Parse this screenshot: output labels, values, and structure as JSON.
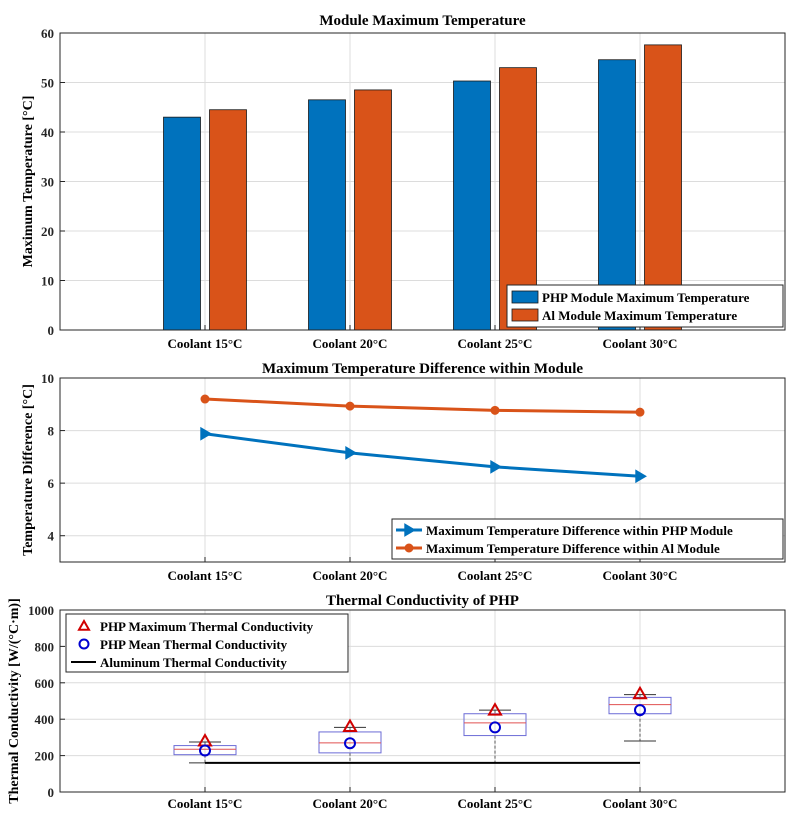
{
  "chart_data": [
    {
      "type": "bar",
      "title": "Module Maximum Temperature",
      "xlabel": "",
      "ylabel": "Maximum Temperature [°C]",
      "ylim": [
        0,
        60
      ],
      "yticks": [
        0,
        10,
        20,
        30,
        40,
        50,
        60
      ],
      "categories": [
        "Coolant 15°C",
        "Coolant 20°C",
        "Coolant 25°C",
        "Coolant 30°C"
      ],
      "series": [
        {
          "name": "PHP Module Maximum Temperature",
          "color": "#0072BD",
          "values": [
            43.0,
            46.5,
            50.3,
            54.6
          ]
        },
        {
          "name": "Al Module Maximum Temperature",
          "color": "#D95319",
          "values": [
            44.5,
            48.5,
            53.0,
            57.6
          ]
        }
      ],
      "legend": "bottom-right",
      "grid": true
    },
    {
      "type": "line",
      "title": "Maximum Temperature Difference within Module",
      "xlabel": "",
      "ylabel": "Temperature Difference [°C]",
      "ylim": [
        3,
        10
      ],
      "yticks": [
        4,
        6,
        8,
        10
      ],
      "categories": [
        "Coolant 15°C",
        "Coolant 20°C",
        "Coolant 25°C",
        "Coolant 30°C"
      ],
      "series": [
        {
          "name": "Maximum Temperature Difference within PHP Module",
          "color": "#0072BD",
          "marker": "triangle-right",
          "values": [
            7.88,
            7.15,
            6.62,
            6.26
          ]
        },
        {
          "name": "Maximum Temperature Difference within Al Module",
          "color": "#D95319",
          "marker": "circle",
          "values": [
            9.2,
            8.93,
            8.77,
            8.7
          ]
        }
      ],
      "legend": "bottom-right",
      "grid": true
    },
    {
      "type": "box",
      "title": "Thermal Conductivity of PHP",
      "xlabel": "",
      "ylabel": "Thermal Conductivity [W/(°C·m)]",
      "ylim": [
        0,
        1000
      ],
      "yticks": [
        0,
        200,
        400,
        600,
        800,
        1000
      ],
      "categories": [
        "Coolant 15°C",
        "Coolant 20°C",
        "Coolant 25°C",
        "Coolant 30°C"
      ],
      "boxes": [
        {
          "min": 160,
          "q1": 205,
          "median": 235,
          "q3": 255,
          "max": 275
        },
        {
          "min": 160,
          "q1": 215,
          "median": 270,
          "q3": 330,
          "max": 355
        },
        {
          "min": 160,
          "q1": 310,
          "median": 380,
          "q3": 430,
          "max": 450
        },
        {
          "min": 280,
          "q1": 430,
          "median": 480,
          "q3": 520,
          "max": 535
        }
      ],
      "series": [
        {
          "name": "PHP Maximum Thermal Conductivity",
          "color": "#D00000",
          "marker": "triangle",
          "values": [
            280,
            360,
            450,
            540
          ]
        },
        {
          "name": "PHP Mean Thermal Conductivity",
          "color": "#0000D0",
          "marker": "circle",
          "values": [
            228,
            268,
            355,
            450
          ]
        },
        {
          "name": "Aluminum Thermal Conductivity",
          "color": "#000000",
          "marker": "line",
          "values": [
            160,
            160,
            160,
            160
          ]
        }
      ],
      "legend": "top-left",
      "grid": true
    }
  ]
}
